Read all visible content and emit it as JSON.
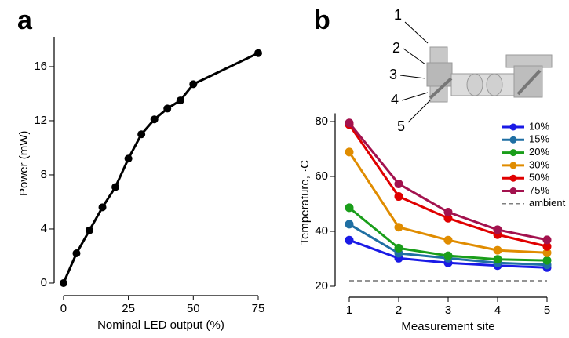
{
  "chart_data": [
    {
      "type": "line",
      "panel_label": "a",
      "x_label": "Nominal LED output (%)",
      "y_label": "Power (mW)",
      "x": [
        0,
        5,
        10,
        15,
        20,
        25,
        30,
        35,
        40,
        45,
        50,
        75
      ],
      "series": [
        {
          "color": "#000000",
          "values": [
            0,
            2.2,
            3.9,
            5.6,
            7.1,
            9.2,
            11.0,
            12.1,
            12.9,
            13.5,
            14.7,
            17.0
          ]
        }
      ],
      "xlim": [
        -3,
        77
      ],
      "xticks": [
        0,
        25,
        50,
        75
      ],
      "ylim": [
        -0.5,
        18.2
      ],
      "yticks": [
        0,
        4,
        8,
        12,
        16
      ]
    },
    {
      "type": "line",
      "panel_label": "b",
      "x_label": "Measurement site",
      "y_label": "Temperature, ·C",
      "x": [
        1,
        2,
        3,
        4,
        5
      ],
      "series": [
        {
          "name": "10%",
          "color": "#1a1ae6",
          "values": [
            36.8,
            30.2,
            28.5,
            27.5,
            26.8
          ]
        },
        {
          "name": "15%",
          "color": "#1f6fa3",
          "values": [
            42.6,
            32.0,
            30.2,
            28.5,
            27.8
          ]
        },
        {
          "name": "20%",
          "color": "#1a9e1a",
          "values": [
            48.6,
            33.9,
            31.1,
            29.8,
            29.4
          ]
        },
        {
          "name": "30%",
          "color": "#e08c00",
          "values": [
            68.9,
            41.5,
            36.8,
            33.1,
            32.2
          ]
        },
        {
          "name": "50%",
          "color": "#e00000",
          "values": [
            78.9,
            52.7,
            44.8,
            38.8,
            34.5
          ]
        },
        {
          "name": "75%",
          "color": "#a3124e",
          "values": [
            79.5,
            57.3,
            47.0,
            40.6,
            36.9
          ]
        },
        {
          "name": "ambient",
          "color": "#555555",
          "dashed": true,
          "values": [
            22,
            22,
            22,
            22,
            22
          ]
        }
      ],
      "xlim": [
        0.8,
        5.2
      ],
      "xticks": [
        1,
        2,
        3,
        4,
        5
      ],
      "ylim": [
        18,
        83
      ],
      "yticks": [
        20,
        40,
        60,
        80
      ],
      "diagram_labels": [
        "1",
        "2",
        "3",
        "4",
        "5"
      ]
    }
  ]
}
